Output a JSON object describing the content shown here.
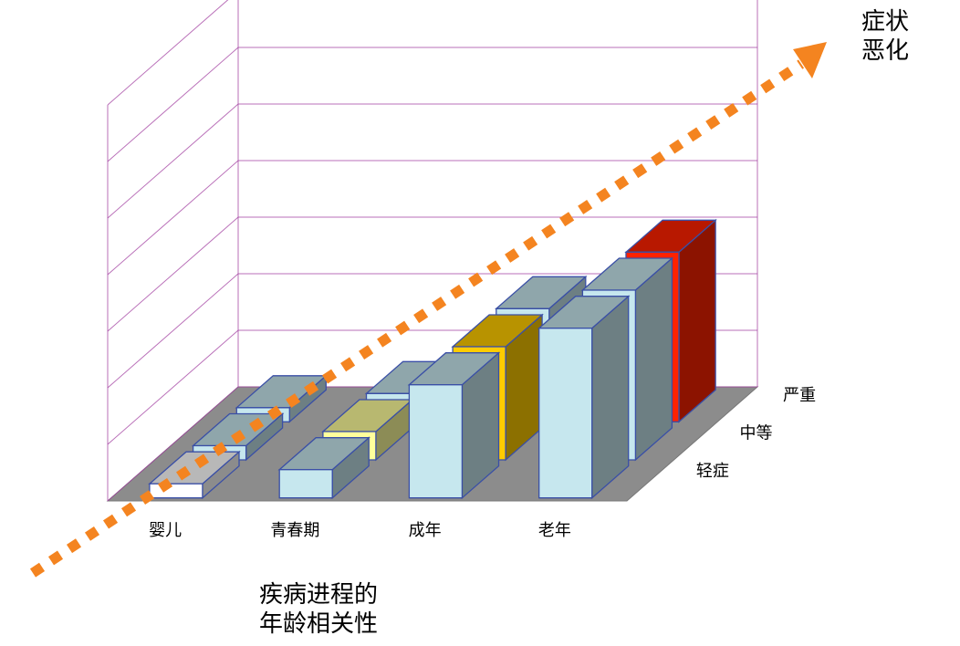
{
  "chart_data": {
    "type": "bar",
    "title": "",
    "categories": [
      "婴儿",
      "青春期",
      "成年",
      "老年"
    ],
    "series": [
      {
        "name": "轻症",
        "values": [
          0.25,
          0.5,
          2.0,
          3.0
        ]
      },
      {
        "name": "中等",
        "values": [
          0.25,
          0.5,
          2.0,
          3.0
        ]
      },
      {
        "name": "严重",
        "values": [
          0.25,
          0.5,
          2.0,
          3.0
        ]
      }
    ],
    "colors": {
      "轻症": [
        "#ffffff",
        "#c6e7ee",
        "#c6e7ee",
        "#c6e7ee"
      ],
      "中等": [
        "#c6e7ee",
        "#ffff9c",
        "#ffcc00",
        "#c6e7ee"
      ],
      "严重": [
        "#c6e7ee",
        "#c6e7ee",
        "#c6e7ee",
        "#ff2200"
      ]
    },
    "ylim": [
      0,
      7
    ],
    "grid": true
  },
  "annotations": {
    "arrow_label": [
      "症状",
      "恶化"
    ],
    "caption": [
      "疾病进程的",
      "年龄相关性"
    ]
  }
}
